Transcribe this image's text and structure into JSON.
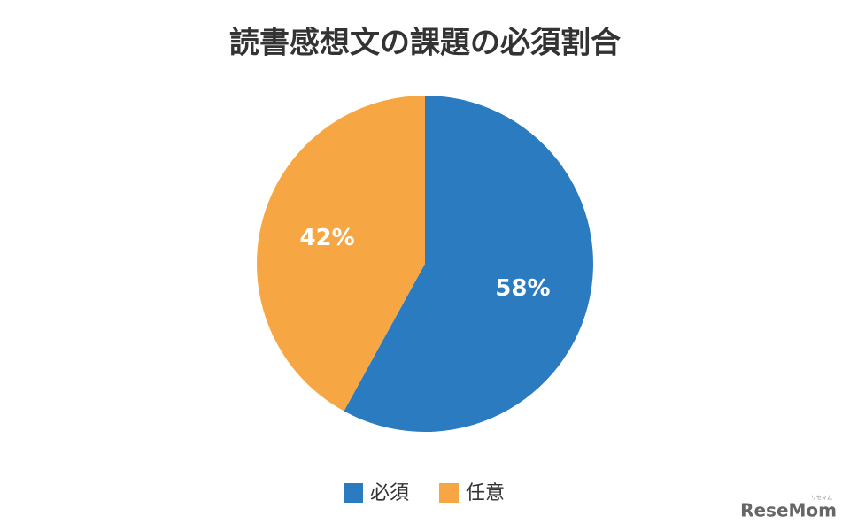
{
  "chart_data": {
    "type": "pie",
    "title": "読書感想文の課題の必須割合",
    "categories": [
      "必須",
      "任意"
    ],
    "values": [
      58,
      42
    ],
    "value_labels": [
      "58%",
      "42%"
    ],
    "colors": [
      "#2a7bc0",
      "#f6a743"
    ],
    "legend": "bottom",
    "start_angle": 0,
    "direction": "clockwise"
  },
  "watermark": "ReseMom",
  "watermark_ruby": "リセマム"
}
